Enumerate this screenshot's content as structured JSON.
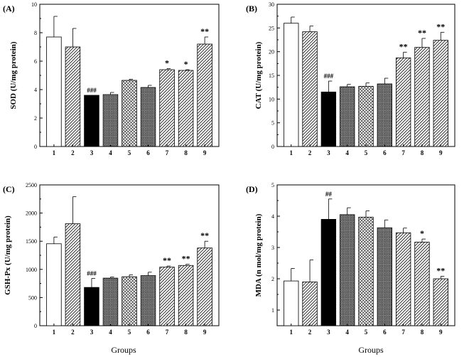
{
  "xlabel": "Groups",
  "colors": {
    "bar_group3": "#000000",
    "axis": "#000000",
    "bar_outline": "#000000"
  },
  "chart_data": [
    {
      "panel": "(A)",
      "type": "bar",
      "ylabel": "SOD (U/mg protein)",
      "ylim": [
        0,
        10
      ],
      "yticks": [
        0,
        2,
        4,
        6,
        8,
        10
      ],
      "categories": [
        "1",
        "2",
        "3",
        "4",
        "5",
        "6",
        "7",
        "8",
        "9"
      ],
      "values": [
        7.7,
        7.0,
        3.6,
        3.65,
        4.65,
        4.15,
        5.4,
        5.35,
        7.2
      ],
      "errors": [
        1.45,
        1.3,
        0.0,
        0.15,
        0.08,
        0.15,
        0.08,
        0.05,
        0.5
      ],
      "fills": [
        "white",
        "diagonal",
        "black",
        "dots",
        "crosshatch",
        "dots",
        "diagonal",
        "diagonal",
        "diagonal"
      ],
      "significance": [
        "",
        "",
        "###",
        "",
        "",
        "",
        "*",
        "*",
        "**"
      ]
    },
    {
      "panel": "(B)",
      "type": "bar",
      "ylabel": "CAT (U/mg protein)",
      "ylim": [
        0,
        30
      ],
      "yticks": [
        0,
        5,
        10,
        15,
        20,
        25,
        30
      ],
      "categories": [
        "1",
        "2",
        "3",
        "4",
        "5",
        "6",
        "7",
        "8",
        "9"
      ],
      "values": [
        26.0,
        24.2,
        11.5,
        12.6,
        12.7,
        13.2,
        18.7,
        20.9,
        22.4
      ],
      "errors": [
        1.3,
        1.2,
        2.3,
        0.5,
        0.7,
        1.2,
        1.2,
        1.9,
        1.7
      ],
      "fills": [
        "white",
        "diagonal",
        "black",
        "dots",
        "crosshatch",
        "dots",
        "diagonal",
        "diagonal",
        "diagonal"
      ],
      "significance": [
        "",
        "",
        "###",
        "",
        "",
        "",
        "**",
        "**",
        "**"
      ]
    },
    {
      "panel": "(C)",
      "type": "bar",
      "ylabel": "GSH-Px (U/mg protein)",
      "ylim": [
        0,
        2500
      ],
      "yticks": [
        0,
        500,
        1000,
        1500,
        2000,
        2500
      ],
      "categories": [
        "1",
        "2",
        "3",
        "4",
        "5",
        "6",
        "7",
        "8",
        "9"
      ],
      "values": [
        1455,
        1810,
        680,
        845,
        870,
        890,
        1040,
        1070,
        1380
      ],
      "errors": [
        120,
        480,
        160,
        20,
        35,
        60,
        20,
        20,
        120
      ],
      "fills": [
        "white",
        "diagonal",
        "black",
        "dots",
        "crosshatch",
        "dots",
        "diagonal",
        "diagonal",
        "diagonal"
      ],
      "significance": [
        "",
        "",
        "###",
        "",
        "",
        "",
        "**",
        "**",
        "**"
      ]
    },
    {
      "panel": "(D)",
      "type": "bar",
      "ylabel": "MDA (n mol/mg protein)",
      "ylim": [
        0.5,
        5
      ],
      "yticks": [
        1,
        2,
        3,
        4,
        5
      ],
      "categories": [
        "1",
        "2",
        "3",
        "4",
        "5",
        "6",
        "7",
        "8",
        "9"
      ],
      "values": [
        1.93,
        1.9,
        3.9,
        4.05,
        3.97,
        3.63,
        3.47,
        3.17,
        2.0
      ],
      "errors": [
        0.4,
        0.7,
        0.65,
        0.22,
        0.2,
        0.25,
        0.15,
        0.1,
        0.08
      ],
      "fills": [
        "white",
        "diagonal",
        "black",
        "dots",
        "crosshatch",
        "dots",
        "diagonal",
        "diagonal",
        "diagonal"
      ],
      "significance": [
        "",
        "",
        "##",
        "",
        "",
        "",
        "",
        "*",
        "**"
      ]
    }
  ]
}
